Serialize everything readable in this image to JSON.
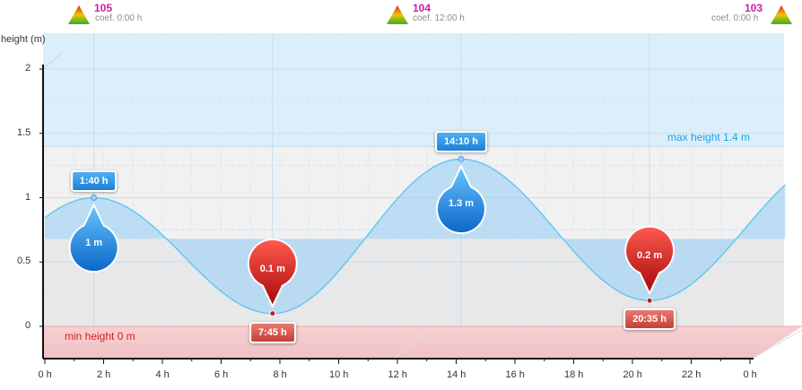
{
  "header": {
    "coefficients": [
      {
        "value": "105",
        "label": "coef. 0:00 h"
      },
      {
        "value": "104",
        "label": "coef. 12:00 h"
      },
      {
        "value": "103",
        "label": "coef. 0:00 h"
      }
    ]
  },
  "chart_data": {
    "type": "area",
    "title": "",
    "ylabel": "height (m)",
    "xlabel": "",
    "ylim": [
      0,
      2
    ],
    "xlim": [
      0,
      24
    ],
    "y_ticks": [
      "0",
      "0.5",
      "1",
      "1.5",
      "2"
    ],
    "x_ticks": [
      "0 h",
      "2 h",
      "4 h",
      "6 h",
      "8 h",
      "10 h",
      "12 h",
      "14 h",
      "16 h",
      "18 h",
      "20 h",
      "22 h",
      "0 h"
    ],
    "grid": true,
    "reference_lines": {
      "max": {
        "label": "max height 1.4 m",
        "value": 1.4,
        "color": "#1aa3e8"
      },
      "min": {
        "label": "min height 0 m",
        "value": 0,
        "color": "#d81e1e"
      }
    },
    "tides": [
      {
        "kind": "high",
        "time": "1:40 h",
        "hours": 1.667,
        "height": 1.0,
        "label": "1 m"
      },
      {
        "kind": "low",
        "time": "7:45 h",
        "hours": 7.75,
        "height": 0.1,
        "label": "0.1 m"
      },
      {
        "kind": "high",
        "time": "14:10 h",
        "hours": 14.167,
        "height": 1.3,
        "label": "1.3 m"
      },
      {
        "kind": "low",
        "time": "20:35 h",
        "hours": 20.583,
        "height": 0.2,
        "label": "0.2 m"
      }
    ],
    "colors": {
      "curve": "#5cc4ee",
      "high_marker": "#1e88e0",
      "low_marker": "#c81414"
    }
  }
}
